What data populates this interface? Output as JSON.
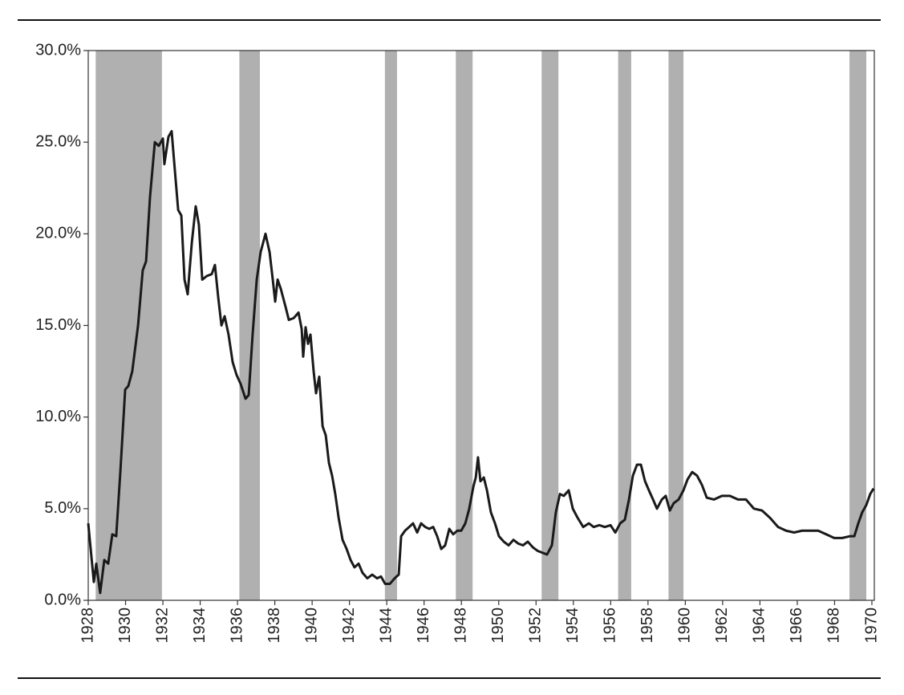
{
  "chart_data": {
    "type": "line",
    "x": [
      1928.0,
      1928.3,
      1928.43,
      1928.64,
      1928.86,
      1929.07,
      1929.29,
      1929.5,
      1929.72,
      1929.98,
      1930.15,
      1930.36,
      1930.67,
      1930.92,
      1931.1,
      1931.31,
      1931.57,
      1931.78,
      1932.0,
      1932.08,
      1932.3,
      1932.47,
      1932.64,
      1932.82,
      1932.99,
      1933.16,
      1933.33,
      1933.55,
      1933.76,
      1933.93,
      1934.11,
      1934.36,
      1934.62,
      1934.79,
      1934.97,
      1935.14,
      1935.31,
      1935.52,
      1935.74,
      1935.95,
      1936.17,
      1936.43,
      1936.6,
      1936.81,
      1937.03,
      1937.24,
      1937.5,
      1937.72,
      1937.89,
      1938.02,
      1938.15,
      1938.32,
      1938.58,
      1938.75,
      1939.01,
      1939.27,
      1939.44,
      1939.52,
      1939.65,
      1939.78,
      1939.91,
      1940.08,
      1940.21,
      1940.38,
      1940.56,
      1940.73,
      1940.9,
      1941.07,
      1941.24,
      1941.42,
      1941.63,
      1941.85,
      1942.06,
      1942.27,
      1942.49,
      1942.7,
      1942.96,
      1943.22,
      1943.48,
      1943.69,
      1943.91,
      1944.17,
      1944.42,
      1944.64,
      1944.77,
      1944.98,
      1945.2,
      1945.41,
      1945.63,
      1945.84,
      1946.06,
      1946.27,
      1946.49,
      1946.7,
      1946.92,
      1947.13,
      1947.35,
      1947.56,
      1947.78,
      1947.99,
      1948.21,
      1948.42,
      1948.64,
      1948.77,
      1948.89,
      1949.02,
      1949.2,
      1949.37,
      1949.58,
      1949.8,
      1950.01,
      1950.27,
      1950.53,
      1950.79,
      1951.04,
      1951.3,
      1951.56,
      1951.82,
      1952.08,
      1952.33,
      1952.59,
      1952.85,
      1953.06,
      1953.28,
      1953.49,
      1953.75,
      1953.97,
      1954.23,
      1954.53,
      1954.83,
      1955.09,
      1955.39,
      1955.69,
      1955.99,
      1956.25,
      1956.51,
      1956.76,
      1956.98,
      1957.19,
      1957.41,
      1957.62,
      1957.84,
      1958.05,
      1958.27,
      1958.48,
      1958.74,
      1958.95,
      1959.17,
      1959.38,
      1959.64,
      1959.9,
      1960.12,
      1960.37,
      1960.63,
      1960.89,
      1961.15,
      1961.54,
      1961.96,
      1962.39,
      1962.82,
      1963.25,
      1963.68,
      1964.11,
      1964.54,
      1964.97,
      1965.4,
      1965.83,
      1966.26,
      1966.69,
      1967.12,
      1967.55,
      1967.98,
      1968.41,
      1968.84,
      1969.06,
      1969.27,
      1969.48,
      1969.7,
      1969.91,
      1970.09
    ],
    "values": [
      4.2,
      1.0,
      2.0,
      0.4,
      2.2,
      2.0,
      3.6,
      3.5,
      7.0,
      11.5,
      11.7,
      12.5,
      15.0,
      18.0,
      18.5,
      22.0,
      25.0,
      24.8,
      25.2,
      23.8,
      25.3,
      25.6,
      23.5,
      21.3,
      21.0,
      17.5,
      16.7,
      19.5,
      21.5,
      20.5,
      17.5,
      17.7,
      17.8,
      18.3,
      16.5,
      15.0,
      15.5,
      14.5,
      13.0,
      12.3,
      11.8,
      11.0,
      11.2,
      14.5,
      17.5,
      19.0,
      20.0,
      19.0,
      17.5,
      16.3,
      17.5,
      17.0,
      16.0,
      15.3,
      15.4,
      15.7,
      14.8,
      13.3,
      14.9,
      14.0,
      14.5,
      12.5,
      11.3,
      12.2,
      9.5,
      9.0,
      7.5,
      6.8,
      5.8,
      4.5,
      3.3,
      2.8,
      2.2,
      1.8,
      2.0,
      1.5,
      1.2,
      1.4,
      1.2,
      1.3,
      0.9,
      0.9,
      1.2,
      1.4,
      3.5,
      3.8,
      4.0,
      4.2,
      3.7,
      4.2,
      4.0,
      3.9,
      4.0,
      3.5,
      2.8,
      3.0,
      3.9,
      3.6,
      3.8,
      3.8,
      4.2,
      5.0,
      6.2,
      6.7,
      7.8,
      6.5,
      6.7,
      6.0,
      4.8,
      4.2,
      3.5,
      3.2,
      3.0,
      3.3,
      3.1,
      3.0,
      3.2,
      2.9,
      2.7,
      2.6,
      2.5,
      3.0,
      4.8,
      5.8,
      5.7,
      6.0,
      5.0,
      4.5,
      4.0,
      4.2,
      4.0,
      4.1,
      4.0,
      4.1,
      3.7,
      4.2,
      4.4,
      5.5,
      6.8,
      7.4,
      7.4,
      6.5,
      6.0,
      5.5,
      5.0,
      5.5,
      5.7,
      4.9,
      5.3,
      5.5,
      6.0,
      6.6,
      7.0,
      6.8,
      6.3,
      5.6,
      5.5,
      5.7,
      5.7,
      5.5,
      5.5,
      5.0,
      4.9,
      4.5,
      4.0,
      3.8,
      3.7,
      3.8,
      3.8,
      3.8,
      3.6,
      3.4,
      3.4,
      3.5,
      3.5,
      4.2,
      4.8,
      5.2,
      5.8,
      6.1
    ],
    "color": "#1a1a1a",
    "shaded_periods": [
      [
        1928.4,
        1931.95
      ],
      [
        1936.1,
        1937.2
      ],
      [
        1943.9,
        1944.55
      ],
      [
        1947.7,
        1948.6
      ],
      [
        1952.3,
        1953.2
      ],
      [
        1956.4,
        1957.1
      ],
      [
        1959.1,
        1959.9
      ],
      [
        1968.8,
        1969.7
      ]
    ],
    "shade_color": "#b0b0b0",
    "xlim": [
      1928,
      1970.13
    ],
    "xticks": [
      1928,
      1930,
      1932,
      1934,
      1936,
      1938,
      1940,
      1942,
      1944,
      1946,
      1948,
      1950,
      1952,
      1954,
      1956,
      1958,
      1960,
      1962,
      1964,
      1966,
      1968,
      1970
    ],
    "ylim": [
      0,
      30
    ],
    "yticks": [
      {
        "value": 0,
        "label": "0.0%"
      },
      {
        "value": 5,
        "label": "5.0%"
      },
      {
        "value": 10,
        "label": "10.0%"
      },
      {
        "value": 15,
        "label": "15.0%"
      },
      {
        "value": 20,
        "label": "20.0%"
      },
      {
        "value": 25,
        "label": "25.0%"
      },
      {
        "value": 30,
        "label": "30.0%"
      }
    ]
  }
}
